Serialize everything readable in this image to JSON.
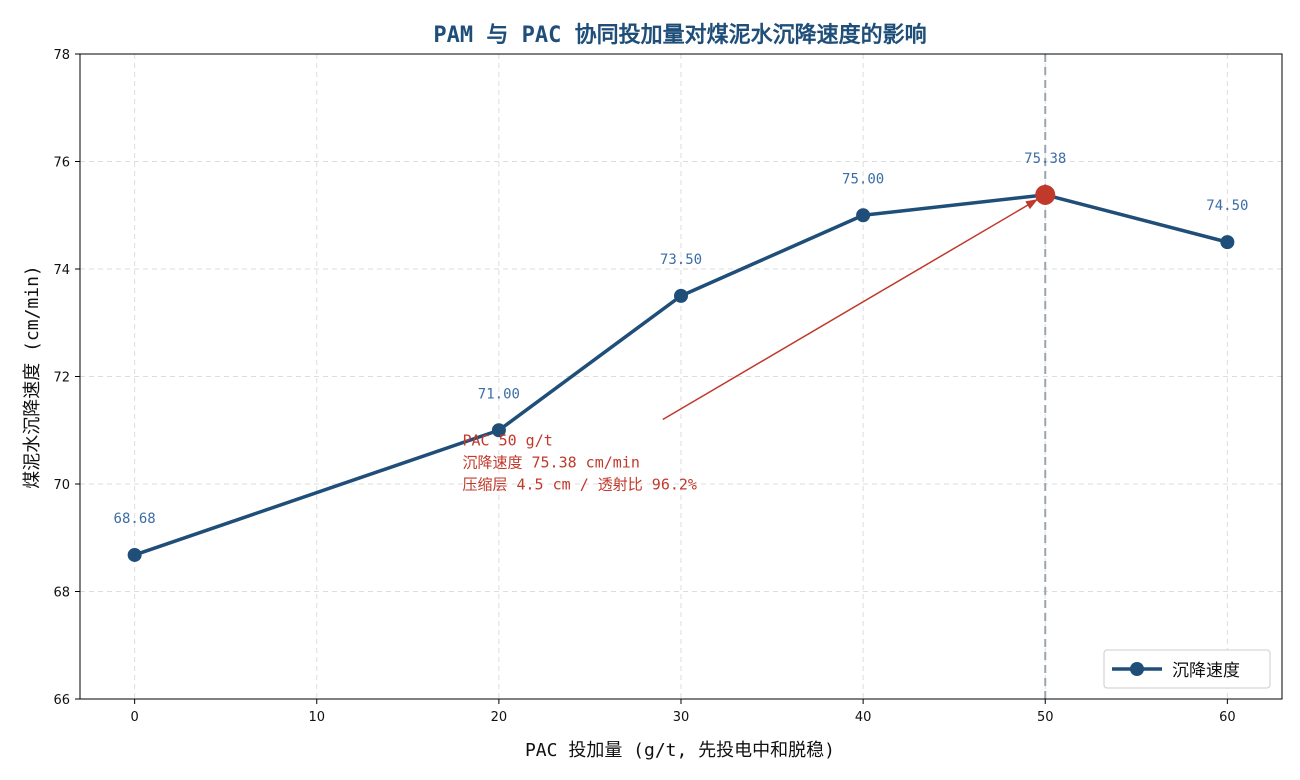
{
  "chart_data": {
    "type": "line",
    "title": "PAM 与 PAC 协同投加量对煤泥水沉降速度的影响",
    "xlabel": "PAC 投加量 (g/t, 先投电中和脱稳)",
    "ylabel": "煤泥水沉降速度 (cm/min)",
    "xlim": [
      -3,
      63
    ],
    "ylim": [
      66,
      78
    ],
    "xticks": [
      0,
      10,
      20,
      30,
      40,
      50,
      60
    ],
    "yticks": [
      66,
      68,
      70,
      72,
      74,
      76,
      78
    ],
    "grid": true,
    "legend_position": "lower-right",
    "series": [
      {
        "name": "沉降速度",
        "color": "#1f4e79",
        "x": [
          0,
          20,
          30,
          40,
          50,
          60
        ],
        "y": [
          68.68,
          71.0,
          73.5,
          75.0,
          75.38,
          74.5
        ],
        "labels": [
          "68.68",
          "71.00",
          "73.50",
          "75.00",
          "75.38",
          "74.50"
        ]
      }
    ],
    "highlight": {
      "x": 50,
      "y": 75.38,
      "color": "#c0392b"
    },
    "vline": {
      "x": 50,
      "color": "#9aa5b1"
    },
    "annotation": {
      "lines": [
        "PAC 50 g/t",
        "沉降速度 75.38 cm/min",
        "压缩层 4.5 cm / 透射比 96.2%"
      ],
      "text_x": 18,
      "text_y": 70.9,
      "arrow_from": [
        29,
        71.2
      ],
      "arrow_to": [
        49.6,
        75.3
      ],
      "color": "#c0392b"
    }
  }
}
